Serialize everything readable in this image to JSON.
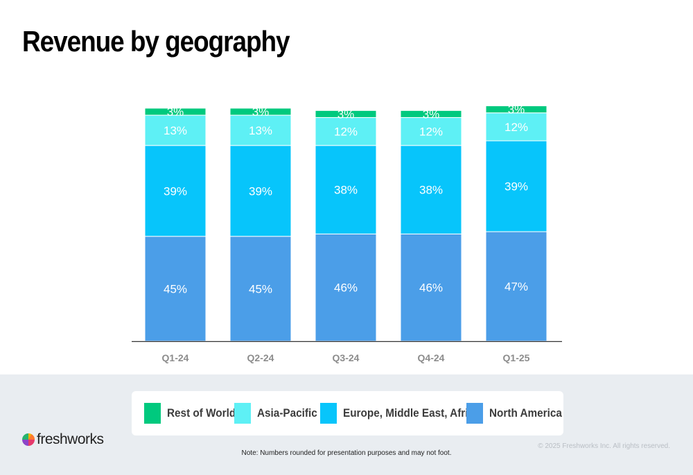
{
  "slide": {
    "title": "Revenue by geography",
    "note": "Note: Numbers rounded for presentation purposes and may not foot.",
    "copyright": "© 2025 Freshworks Inc. All rights reserved.",
    "logo_text": "freshworks"
  },
  "legend": [
    {
      "label": "Rest of World",
      "color": "#00c97e"
    },
    {
      "label": "Asia-Pacific",
      "color": "#5ef0f5"
    },
    {
      "label": "Europe, Middle East, Africa",
      "color": "#07c5fb"
    },
    {
      "label": "North America",
      "color": "#4b9ee8"
    }
  ],
  "chart_data": {
    "type": "bar",
    "stacked": true,
    "title": "Revenue by geography",
    "categories": [
      "Q1-24",
      "Q2-24",
      "Q3-24",
      "Q4-24",
      "Q1-25"
    ],
    "series": [
      {
        "name": "North America",
        "color": "#4b9ee8",
        "values": [
          45,
          45,
          46,
          46,
          47
        ],
        "labels": [
          "45%",
          "45%",
          "46%",
          "46%",
          "47%"
        ]
      },
      {
        "name": "Europe, Middle East, Africa",
        "color": "#07c5fb",
        "values": [
          39,
          39,
          38,
          38,
          39
        ],
        "labels": [
          "39%",
          "39%",
          "38%",
          "38%",
          "39%"
        ]
      },
      {
        "name": "Asia-Pacific",
        "color": "#5ef0f5",
        "values": [
          13,
          13,
          12,
          12,
          12
        ],
        "labels": [
          "13%",
          "13%",
          "12%",
          "12%",
          "12%"
        ]
      },
      {
        "name": "Rest of World",
        "color": "#00c97e",
        "values": [
          3,
          3,
          3,
          3,
          3
        ],
        "labels": [
          "3%",
          "3%",
          "3%",
          "3%",
          "3%"
        ]
      }
    ],
    "ylim": [
      0,
      100
    ],
    "grid": false,
    "legend_position": "bottom",
    "xlabel": "",
    "ylabel": ""
  }
}
